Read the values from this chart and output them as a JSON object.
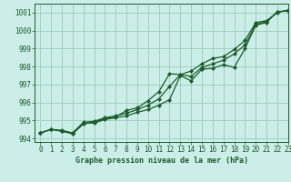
{
  "title": "Graphe pression niveau de la mer (hPa)",
  "bg_color": "#cceee8",
  "grid_color": "#99ccbb",
  "line_color": "#1a5c2a",
  "xlim": [
    -0.5,
    23
  ],
  "ylim": [
    993.8,
    1001.5
  ],
  "yticks": [
    994,
    995,
    996,
    997,
    998,
    999,
    1000,
    1001
  ],
  "xticks": [
    0,
    1,
    2,
    3,
    4,
    5,
    6,
    7,
    8,
    9,
    10,
    11,
    12,
    13,
    14,
    15,
    16,
    17,
    18,
    19,
    20,
    21,
    22,
    23
  ],
  "series1": [
    994.3,
    994.5,
    994.4,
    994.3,
    994.85,
    994.85,
    995.05,
    995.15,
    995.25,
    995.45,
    995.6,
    995.85,
    996.15,
    997.5,
    997.2,
    997.85,
    997.9,
    998.1,
    997.95,
    999.0,
    1000.3,
    1000.45,
    1001.05,
    1001.1
  ],
  "series2": [
    994.3,
    994.5,
    994.4,
    994.25,
    994.8,
    994.9,
    995.1,
    995.2,
    995.55,
    995.7,
    996.1,
    996.6,
    997.6,
    997.55,
    997.75,
    998.15,
    998.45,
    998.55,
    998.95,
    999.45,
    1000.45,
    1000.55,
    1001.0,
    1001.15
  ],
  "series3": [
    994.3,
    994.5,
    994.45,
    994.3,
    994.9,
    994.95,
    995.15,
    995.25,
    995.4,
    995.6,
    995.85,
    996.2,
    996.9,
    997.55,
    997.45,
    997.95,
    998.15,
    998.35,
    998.7,
    999.2,
    1000.35,
    1000.5,
    1001.05,
    1001.1
  ],
  "tick_fontsize": 5.5,
  "xlabel_fontsize": 6.0,
  "marker": "D",
  "marker_size": 2.2,
  "linewidth": 0.9
}
